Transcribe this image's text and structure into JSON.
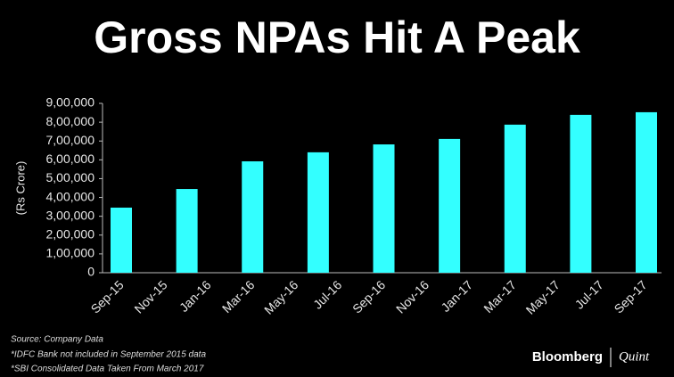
{
  "chart_data": {
    "type": "bar",
    "title": "Gross NPAs Hit A Peak",
    "y_label": "(Rs Crore)",
    "categories": [
      null,
      null,
      null,
      null,
      null,
      null,
      null,
      null,
      null
    ],
    "values": [
      346000,
      445000,
      592000,
      640000,
      682000,
      711000,
      787000,
      839000,
      853000
    ],
    "color": "#33ffff",
    "xtick_labels": [
      "Sep-15",
      "Nov-15",
      "Jan-16",
      "Mar-16",
      "May-16",
      "Jul-16",
      "Sep-16",
      "Nov-16",
      "Jan-17",
      "Mar-17",
      "May-17",
      "Jul-17",
      "Sep-17"
    ],
    "ylim": [
      0,
      900000
    ],
    "yticks": [
      0,
      {
        "value": 100000,
        "label": "1,00,000"
      },
      {
        "value": 200000,
        "label": "2,00,000"
      },
      {
        "value": 300000,
        "label": "3,00,000"
      },
      {
        "value": 400000,
        "label": "4,00,000"
      },
      {
        "value": 500000,
        "label": "5,00,000"
      },
      {
        "value": 600000,
        "label": "6,00,000"
      },
      {
        "value": 700000,
        "label": "7,00,000"
      },
      {
        "value": 800000,
        "label": "8,00,000"
      },
      {
        "value": 900000,
        "label": "9,00,000"
      }
    ],
    "grid": false,
    "notes": [
      "Source: Company Data",
      "*IDFC Bank not included in September 2015 data",
      "*SBI Consolidated Data Taken From March 2017"
    ],
    "brand": [
      "Bloomberg",
      "Quint"
    ]
  }
}
